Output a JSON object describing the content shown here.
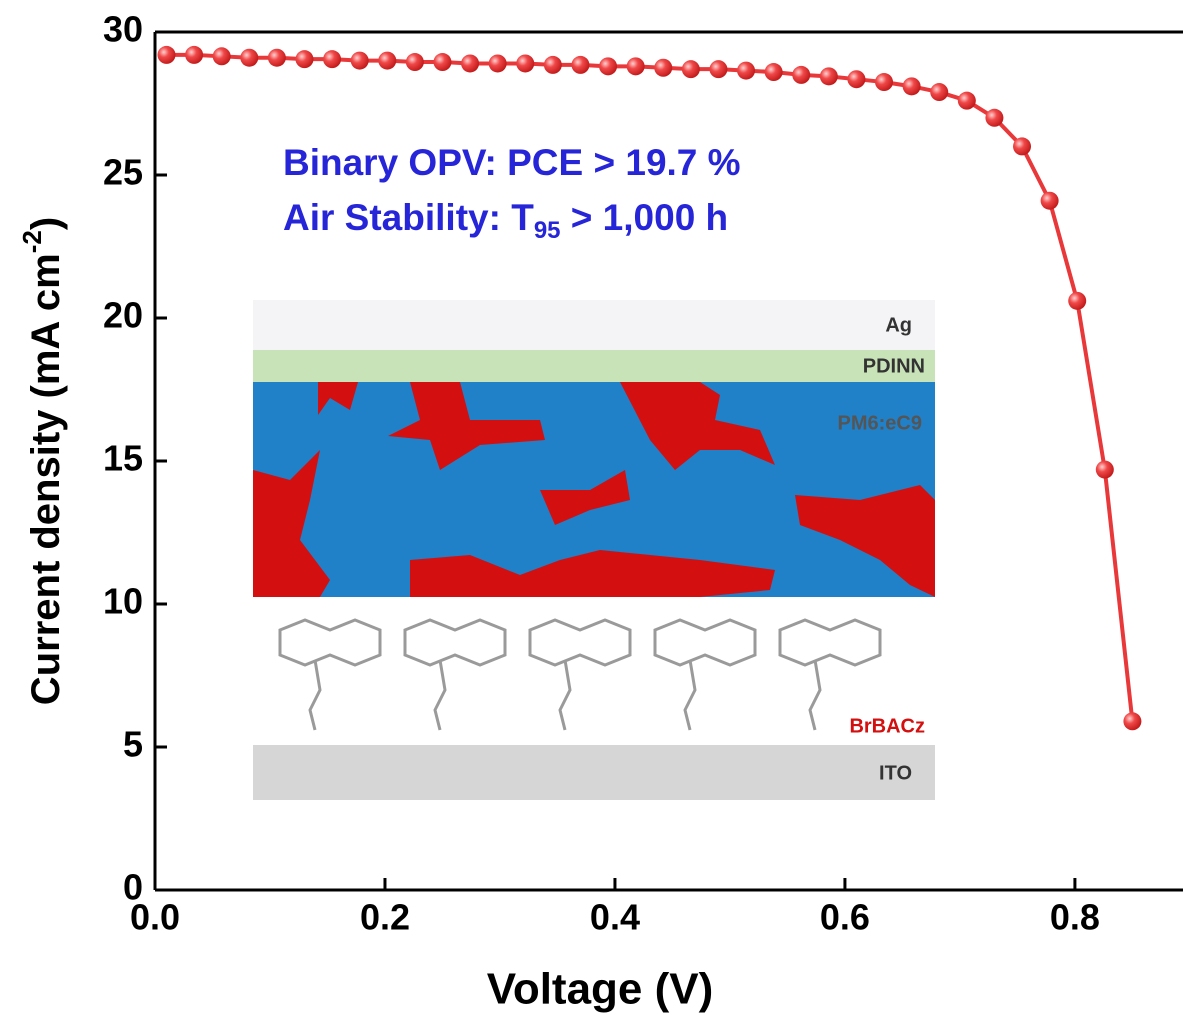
{
  "chart_data": {
    "type": "line",
    "xlabel": "Voltage (V)",
    "ylabel": [
      "Current density (mA cm",
      "-2",
      ")"
    ],
    "annotations": [
      [
        "Binary OPV: PCE > 19.7 %"
      ],
      [
        "Air Stability: T",
        "95",
        " > 1,000 h"
      ]
    ],
    "x": [
      0.01,
      0.034,
      0.058,
      0.082,
      0.106,
      0.13,
      0.154,
      0.178,
      0.202,
      0.226,
      0.25,
      0.274,
      0.298,
      0.322,
      0.346,
      0.37,
      0.394,
      0.418,
      0.442,
      0.466,
      0.49,
      0.514,
      0.538,
      0.562,
      0.586,
      0.61,
      0.634,
      0.658,
      0.682,
      0.706,
      0.73,
      0.754,
      0.778,
      0.802,
      0.826,
      0.85
    ],
    "series": [
      {
        "color": "#e8383a",
        "values": [
          29.2,
          29.2,
          29.15,
          29.1,
          29.1,
          29.05,
          29.05,
          29.0,
          29.0,
          28.95,
          28.95,
          28.9,
          28.9,
          28.9,
          28.85,
          28.85,
          28.8,
          28.8,
          28.75,
          28.7,
          28.7,
          28.65,
          28.6,
          28.5,
          28.45,
          28.35,
          28.25,
          28.1,
          27.9,
          27.6,
          27.0,
          26.0,
          24.1,
          20.6,
          14.7,
          5.9
        ]
      }
    ],
    "xlim": [
      0,
      0.894
    ],
    "xticks": [
      {
        "value": 0,
        "label": "0.0"
      },
      0.2,
      0.4,
      0.6,
      0.8
    ],
    "ylim": [
      0,
      30
    ],
    "yticks": [
      0,
      5,
      10,
      15,
      20,
      25,
      30
    ]
  },
  "inset": {
    "layers": [
      "Ag",
      "PDINN",
      "PM6:eC9",
      "BrBACz",
      "ITO"
    ]
  }
}
